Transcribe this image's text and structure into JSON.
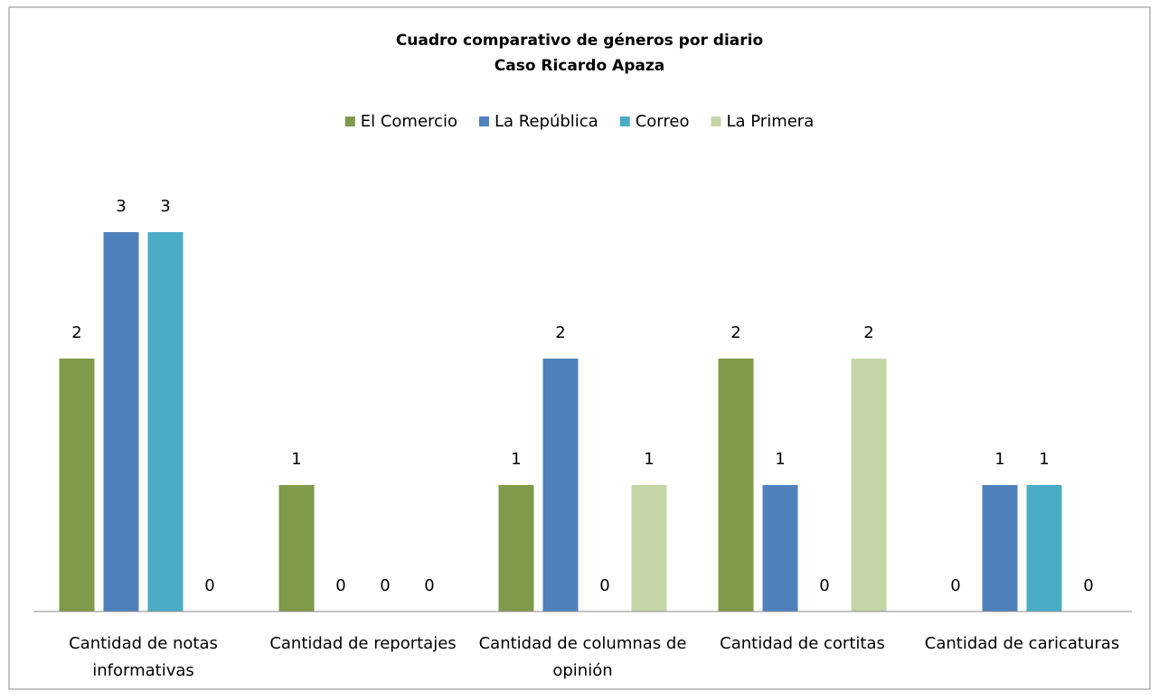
{
  "chart_data": {
    "type": "bar",
    "title": "Cuadro comparativo de géneros por diario",
    "subtitle": "Caso Ricardo Apaza",
    "categories": [
      "Cantidad de notas informativas",
      "Cantidad de reportajes",
      "Cantidad de columnas de opinión",
      "Cantidad de cortitas",
      "Cantidad de caricaturas"
    ],
    "series": [
      {
        "name": "El Comercio",
        "color": "#7f9a48",
        "values": [
          2,
          1,
          1,
          2,
          0
        ]
      },
      {
        "name": "La República",
        "color": "#4f81bd",
        "values": [
          3,
          0,
          2,
          1,
          1
        ]
      },
      {
        "name": "Correo",
        "color": "#4bacc6",
        "values": [
          3,
          0,
          0,
          0,
          1
        ]
      },
      {
        "name": "La Primera",
        "color": "#c4d6a8",
        "values": [
          0,
          0,
          1,
          2,
          0
        ]
      }
    ],
    "legend": "top"
  }
}
